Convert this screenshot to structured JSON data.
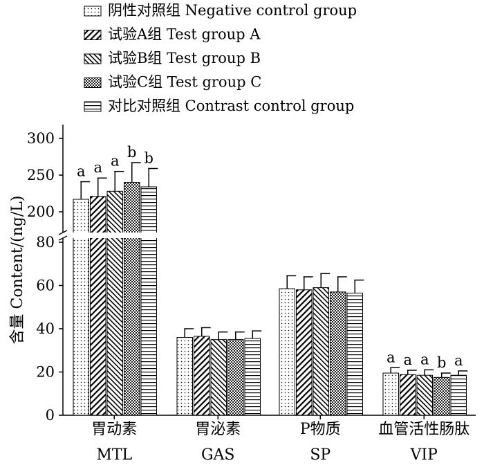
{
  "chart_data": {
    "type": "bar",
    "ylabel": "含量  Content/(ng/L)",
    "categories": [
      {
        "cn": "胃动素",
        "en": "MTL"
      },
      {
        "cn": "胃泌素",
        "en": "GAS"
      },
      {
        "cn": "P物质",
        "en": "SP"
      },
      {
        "cn": "血管活性肠肽",
        "en": "VIP"
      }
    ],
    "series": [
      {
        "name": "阴性对照组  Negative control group",
        "pattern": "dots",
        "values": [
          217,
          36,
          58.5,
          19.5
        ],
        "errors": [
          24,
          4,
          6,
          2.5
        ],
        "letters": [
          "a",
          "",
          "",
          "a"
        ]
      },
      {
        "name": "试验A组  Test group A",
        "pattern": "diag-right",
        "values": [
          221,
          36.5,
          58,
          18.8
        ],
        "errors": [
          25,
          4,
          6,
          2
        ],
        "letters": [
          "a",
          "",
          "",
          "a"
        ]
      },
      {
        "name": "试验B组  Test group B",
        "pattern": "diag-left",
        "values": [
          228,
          35,
          59,
          18.5
        ],
        "errors": [
          27,
          3.5,
          6.5,
          2.5
        ],
        "letters": [
          "a",
          "",
          "",
          "a"
        ]
      },
      {
        "name": "试验C组  Test group C",
        "pattern": "crosshatch",
        "values": [
          240,
          35,
          57,
          17.5
        ],
        "errors": [
          27,
          3.5,
          7,
          2
        ],
        "letters": [
          "b",
          "",
          "",
          "b"
        ]
      },
      {
        "name": "对比对照组  Contrast control group",
        "pattern": "horizontal",
        "values": [
          234,
          35.5,
          56.5,
          18.5
        ],
        "errors": [
          25,
          3.5,
          6,
          2
        ],
        "letters": [
          "b",
          "",
          "",
          "a"
        ]
      }
    ],
    "axis_lower": {
      "range": [
        0,
        80
      ],
      "ticks": [
        0,
        20,
        40,
        60,
        80
      ]
    },
    "axis_upper": {
      "range": [
        185,
        310
      ],
      "ticks": [
        200,
        250,
        300
      ]
    },
    "axis_break": true,
    "legend_position": "top",
    "grid": false
  }
}
